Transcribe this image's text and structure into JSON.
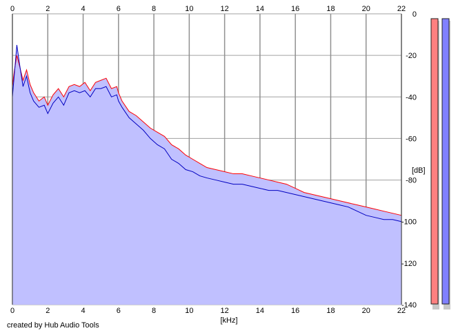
{
  "footer": {
    "credit": "created by Hub Audio Tools"
  },
  "chart_data": {
    "type": "line",
    "xlabel": "[kHz]",
    "ylabel": "[dB]",
    "xlim": [
      0,
      22
    ],
    "ylim": [
      -140,
      0
    ],
    "x_ticks": [
      0,
      2,
      4,
      6,
      8,
      10,
      12,
      14,
      16,
      18,
      20,
      22
    ],
    "y_ticks": [
      0,
      -20,
      -40,
      -60,
      -80,
      -100,
      -120,
      -140
    ],
    "grid": true,
    "fill_under": true,
    "fill_color": "#c0c0ff",
    "series": [
      {
        "color": "#ff0000",
        "x": [
          0,
          0.1,
          0.25,
          0.4,
          0.6,
          0.8,
          1.0,
          1.2,
          1.5,
          1.8,
          2.0,
          2.3,
          2.6,
          2.9,
          3.2,
          3.5,
          3.8,
          4.1,
          4.4,
          4.7,
          5.0,
          5.3,
          5.6,
          5.9,
          6.0,
          6.2,
          6.6,
          7.0,
          7.4,
          7.8,
          8.2,
          8.6,
          9.0,
          9.4,
          9.8,
          10.2,
          10.6,
          11.0,
          11.5,
          12.0,
          12.5,
          13.0,
          13.5,
          14.0,
          14.5,
          15.0,
          15.5,
          16.0,
          16.5,
          17.0,
          17.5,
          18.0,
          18.5,
          19.0,
          19.5,
          20.0,
          20.5,
          21.0,
          21.5,
          22.0
        ],
        "values": [
          -35,
          -28,
          -20,
          -25,
          -32,
          -27,
          -34,
          -38,
          -42,
          -40,
          -44,
          -39,
          -36,
          -40,
          -35,
          -34,
          -35,
          -33,
          -37,
          -33,
          -32,
          -31,
          -36,
          -35,
          -38,
          -42,
          -47,
          -49,
          -52,
          -55,
          -57,
          -59,
          -63,
          -65,
          -68,
          -70,
          -72,
          -74,
          -75,
          -76,
          -77,
          -77,
          -78,
          -79,
          -80,
          -81,
          -82,
          -84,
          -86,
          -87,
          -88,
          -89,
          -90,
          -91,
          -92,
          -93,
          -94,
          -95,
          -96,
          -97
        ]
      },
      {
        "color": "#0000c0",
        "x": [
          0,
          0.1,
          0.25,
          0.4,
          0.6,
          0.8,
          1.0,
          1.2,
          1.5,
          1.8,
          2.0,
          2.3,
          2.6,
          2.9,
          3.2,
          3.5,
          3.8,
          4.1,
          4.4,
          4.7,
          5.0,
          5.3,
          5.6,
          5.9,
          6.0,
          6.2,
          6.6,
          7.0,
          7.4,
          7.8,
          8.2,
          8.6,
          9.0,
          9.4,
          9.8,
          10.2,
          10.6,
          11.0,
          11.5,
          12.0,
          12.5,
          13.0,
          13.5,
          14.0,
          14.5,
          15.0,
          15.5,
          16.0,
          16.5,
          17.0,
          17.5,
          18.0,
          18.5,
          19.0,
          19.5,
          20.0,
          20.5,
          21.0,
          21.5,
          22.0
        ],
        "values": [
          -40,
          -30,
          -15,
          -24,
          -35,
          -30,
          -38,
          -42,
          -45,
          -44,
          -48,
          -43,
          -40,
          -44,
          -38,
          -37,
          -38,
          -37,
          -40,
          -36,
          -36,
          -35,
          -40,
          -39,
          -42,
          -45,
          -50,
          -53,
          -56,
          -60,
          -63,
          -65,
          -70,
          -72,
          -75,
          -76,
          -78,
          -79,
          -80,
          -81,
          -82,
          -82,
          -83,
          -84,
          -85,
          -85,
          -86,
          -87,
          -88,
          -89,
          -90,
          -91,
          -92,
          -93,
          -95,
          -97,
          -98,
          -99,
          -99,
          -100
        ]
      }
    ],
    "level_meters": [
      {
        "color": "#ff8080"
      },
      {
        "color": "#8080ff"
      }
    ]
  }
}
